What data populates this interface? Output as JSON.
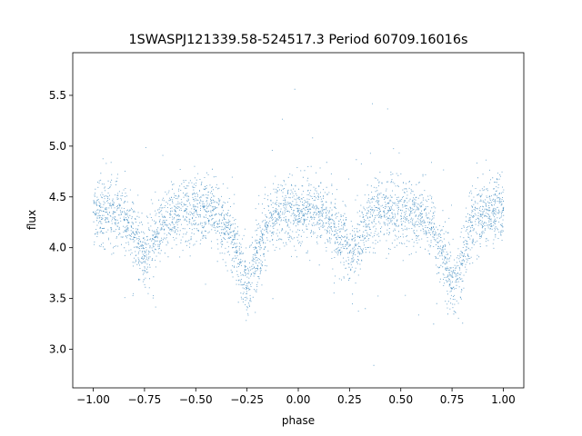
{
  "chart_data": {
    "type": "scatter",
    "title": "1SWASPJ121339.58-524517.3 Period 60709.16016s",
    "xlabel": "phase",
    "ylabel": "flux",
    "xlim": [
      -1.1,
      1.1
    ],
    "ylim": [
      2.62,
      5.92
    ],
    "xticks": [
      -1.0,
      -0.75,
      -0.5,
      -0.25,
      0.0,
      0.25,
      0.5,
      0.75,
      1.0
    ],
    "xtick_labels": [
      "−1.00",
      "−0.75",
      "−0.50",
      "−0.25",
      "0.00",
      "0.25",
      "0.50",
      "0.75",
      "1.00"
    ],
    "yticks": [
      3.0,
      3.5,
      4.0,
      4.5,
      5.0,
      5.5
    ],
    "ytick_labels": [
      "3.0",
      "3.5",
      "4.0",
      "4.5",
      "5.0",
      "5.5"
    ],
    "grid": false,
    "point_color": "#1f77b4",
    "series": [
      {
        "x": [
          -1.0,
          -0.95,
          -0.9,
          -0.85,
          -0.8,
          -0.75,
          -0.7,
          -0.65,
          -0.6,
          -0.55,
          -0.5,
          -0.45,
          -0.4,
          -0.35,
          -0.3,
          -0.25,
          -0.2,
          -0.15,
          -0.1,
          -0.05,
          0.0,
          0.05,
          0.1,
          0.15,
          0.2,
          0.25,
          0.3,
          0.35,
          0.4,
          0.45,
          0.5,
          0.55,
          0.6,
          0.65,
          0.7,
          0.75,
          0.8,
          0.85,
          0.9,
          0.95,
          1.0
        ],
        "y": [
          4.35,
          4.36,
          4.35,
          4.28,
          4.1,
          3.92,
          4.1,
          4.3,
          4.36,
          4.37,
          4.37,
          4.36,
          4.33,
          4.2,
          3.95,
          3.6,
          3.95,
          4.22,
          4.33,
          4.36,
          4.37,
          4.36,
          4.35,
          4.28,
          4.1,
          3.95,
          4.1,
          4.3,
          4.36,
          4.37,
          4.37,
          4.36,
          4.33,
          4.2,
          3.95,
          3.6,
          3.95,
          4.22,
          4.33,
          4.36,
          4.37
        ]
      }
    ]
  }
}
